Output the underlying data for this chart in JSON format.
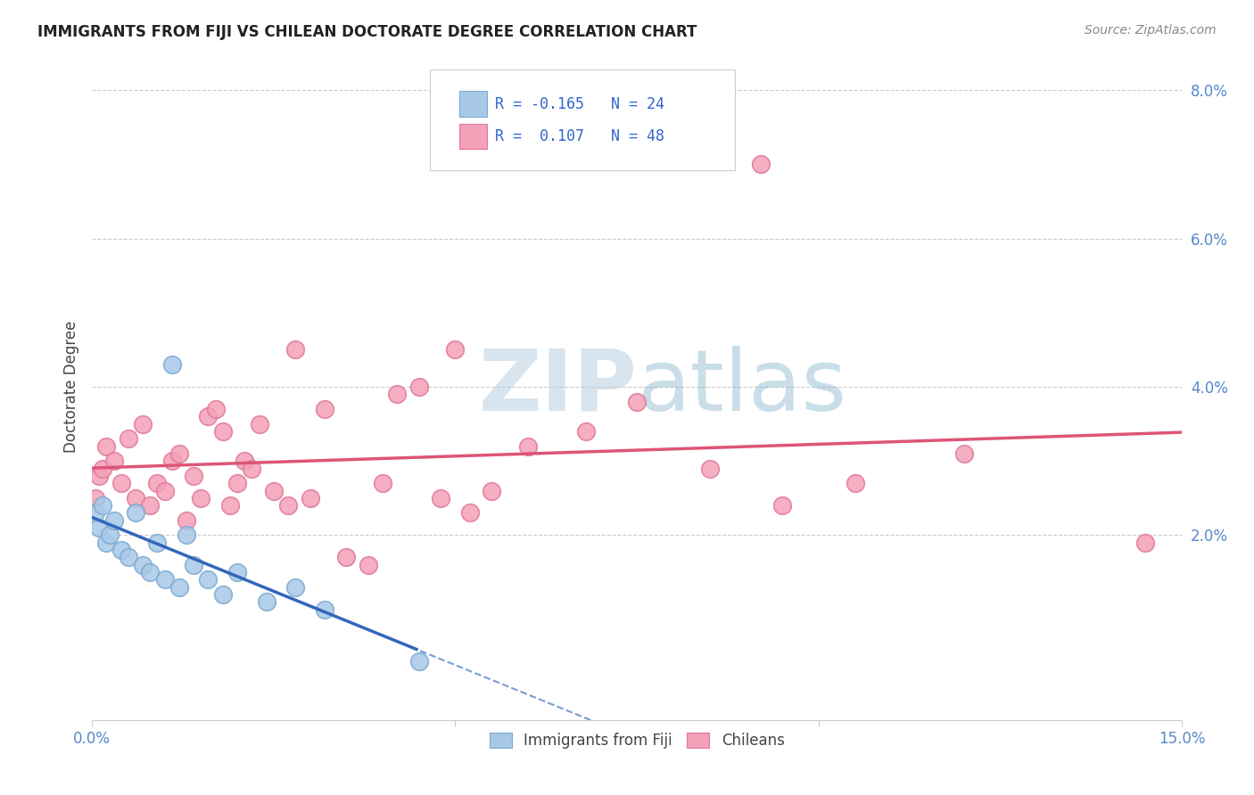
{
  "title": "IMMIGRANTS FROM FIJI VS CHILEAN DOCTORATE DEGREE CORRELATION CHART",
  "source": "Source: ZipAtlas.com",
  "ylabel": "Doctorate Degree",
  "xlim": [
    0.0,
    15.0
  ],
  "ylim": [
    -0.5,
    8.5
  ],
  "yticks": [
    0.0,
    2.0,
    4.0,
    6.0,
    8.0
  ],
  "xticks": [
    0.0,
    5.0,
    10.0,
    15.0
  ],
  "legend_label_fiji": "Immigrants from Fiji",
  "legend_label_chilean": "Chileans",
  "fiji_color": "#a8c8e8",
  "chilean_color": "#f4a0b8",
  "fiji_edge_color": "#7aaad0",
  "chilean_edge_color": "#e07898",
  "fiji_line_color": "#3366bb",
  "chilean_line_color": "#dd5577",
  "fiji_R": -0.165,
  "fiji_N": 24,
  "chilean_R": 0.107,
  "chilean_N": 48,
  "watermark": "ZIPatlas",
  "fiji_x": [
    0.05,
    0.1,
    0.15,
    0.2,
    0.25,
    0.3,
    0.4,
    0.5,
    0.6,
    0.7,
    0.8,
    0.9,
    1.0,
    1.1,
    1.2,
    1.3,
    1.4,
    1.6,
    1.8,
    2.0,
    2.4,
    2.8,
    3.2,
    4.5
  ],
  "fiji_y": [
    2.3,
    2.1,
    2.4,
    1.9,
    2.0,
    2.2,
    1.8,
    1.7,
    2.3,
    1.6,
    1.5,
    1.9,
    1.4,
    4.3,
    1.3,
    2.0,
    1.6,
    1.4,
    1.2,
    1.5,
    1.1,
    1.3,
    1.0,
    0.3
  ],
  "chilean_x": [
    0.05,
    0.1,
    0.15,
    0.2,
    0.3,
    0.4,
    0.5,
    0.6,
    0.7,
    0.8,
    0.9,
    1.0,
    1.1,
    1.2,
    1.3,
    1.4,
    1.5,
    1.6,
    1.7,
    1.8,
    1.9,
    2.0,
    2.1,
    2.2,
    2.3,
    2.5,
    2.7,
    2.8,
    3.0,
    3.2,
    3.5,
    3.8,
    4.0,
    4.2,
    4.5,
    4.8,
    5.0,
    5.2,
    5.5,
    6.0,
    6.8,
    7.5,
    8.5,
    9.2,
    9.5,
    10.5,
    12.0,
    14.5
  ],
  "chilean_y": [
    2.5,
    2.8,
    2.9,
    3.2,
    3.0,
    2.7,
    3.3,
    2.5,
    3.5,
    2.4,
    2.7,
    2.6,
    3.0,
    3.1,
    2.2,
    2.8,
    2.5,
    3.6,
    3.7,
    3.4,
    2.4,
    2.7,
    3.0,
    2.9,
    3.5,
    2.6,
    2.4,
    4.5,
    2.5,
    3.7,
    1.7,
    1.6,
    2.7,
    3.9,
    4.0,
    2.5,
    4.5,
    2.3,
    2.6,
    3.2,
    3.4,
    3.8,
    2.9,
    7.0,
    2.4,
    2.7,
    3.1,
    1.9
  ]
}
